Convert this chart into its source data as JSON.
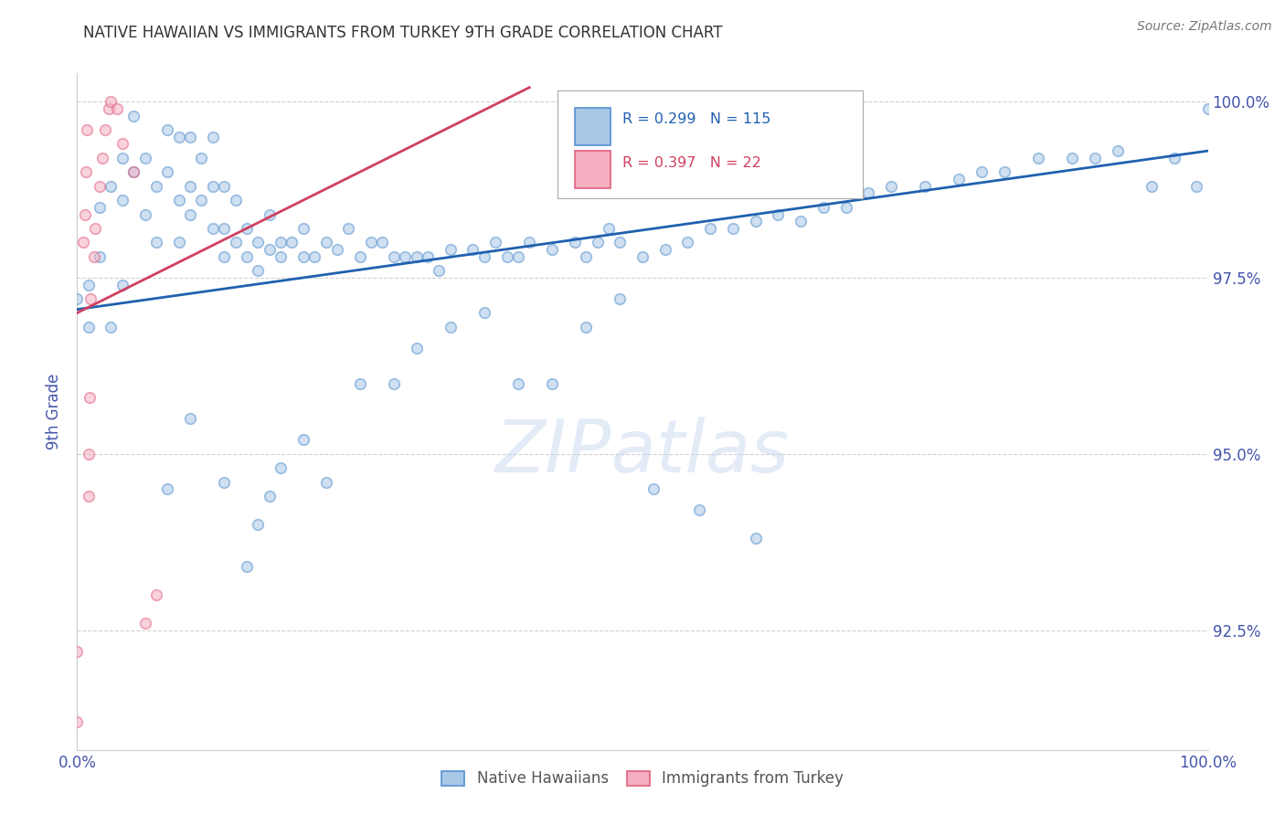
{
  "title": "NATIVE HAWAIIAN VS IMMIGRANTS FROM TURKEY 9TH GRADE CORRELATION CHART",
  "source": "Source: ZipAtlas.com",
  "ylabel": "9th Grade",
  "xlim": [
    0.0,
    1.0
  ],
  "ylim": [
    0.908,
    1.004
  ],
  "yticks": [
    0.925,
    0.95,
    0.975,
    1.0
  ],
  "ytick_labels": [
    "92.5%",
    "95.0%",
    "97.5%",
    "100.0%"
  ],
  "xticks": [
    0.0,
    0.2,
    0.4,
    0.6,
    0.8,
    1.0
  ],
  "xtick_labels": [
    "0.0%",
    "",
    "",
    "",
    "",
    "100.0%"
  ],
  "blue_scatter_x": [
    0.0,
    0.01,
    0.01,
    0.02,
    0.02,
    0.03,
    0.03,
    0.04,
    0.04,
    0.04,
    0.05,
    0.05,
    0.06,
    0.06,
    0.07,
    0.07,
    0.08,
    0.08,
    0.09,
    0.09,
    0.09,
    0.1,
    0.1,
    0.1,
    0.11,
    0.11,
    0.12,
    0.12,
    0.12,
    0.13,
    0.13,
    0.13,
    0.14,
    0.14,
    0.15,
    0.15,
    0.16,
    0.16,
    0.17,
    0.17,
    0.18,
    0.18,
    0.19,
    0.2,
    0.2,
    0.21,
    0.22,
    0.23,
    0.24,
    0.25,
    0.26,
    0.27,
    0.28,
    0.29,
    0.3,
    0.31,
    0.32,
    0.33,
    0.35,
    0.36,
    0.37,
    0.38,
    0.39,
    0.4,
    0.42,
    0.44,
    0.45,
    0.46,
    0.47,
    0.48,
    0.5,
    0.52,
    0.54,
    0.56,
    0.58,
    0.6,
    0.62,
    0.64,
    0.66,
    0.68,
    0.7,
    0.72,
    0.75,
    0.78,
    0.8,
    0.82,
    0.85,
    0.88,
    0.9,
    0.92,
    0.95,
    0.97,
    0.99,
    1.0,
    0.08,
    0.1,
    0.13,
    0.15,
    0.16,
    0.17,
    0.18,
    0.2,
    0.22,
    0.25,
    0.28,
    0.3,
    0.33,
    0.36,
    0.39,
    0.42,
    0.45,
    0.48,
    0.51,
    0.55,
    0.6
  ],
  "blue_scatter_y": [
    0.972,
    0.974,
    0.968,
    0.985,
    0.978,
    0.988,
    0.968,
    0.992,
    0.986,
    0.974,
    0.998,
    0.99,
    0.992,
    0.984,
    0.988,
    0.98,
    0.996,
    0.99,
    0.995,
    0.986,
    0.98,
    0.995,
    0.988,
    0.984,
    0.992,
    0.986,
    0.995,
    0.988,
    0.982,
    0.988,
    0.982,
    0.978,
    0.986,
    0.98,
    0.982,
    0.978,
    0.98,
    0.976,
    0.984,
    0.979,
    0.98,
    0.978,
    0.98,
    0.982,
    0.978,
    0.978,
    0.98,
    0.979,
    0.982,
    0.978,
    0.98,
    0.98,
    0.978,
    0.978,
    0.978,
    0.978,
    0.976,
    0.979,
    0.979,
    0.978,
    0.98,
    0.978,
    0.978,
    0.98,
    0.979,
    0.98,
    0.978,
    0.98,
    0.982,
    0.98,
    0.978,
    0.979,
    0.98,
    0.982,
    0.982,
    0.983,
    0.984,
    0.983,
    0.985,
    0.985,
    0.987,
    0.988,
    0.988,
    0.989,
    0.99,
    0.99,
    0.992,
    0.992,
    0.992,
    0.993,
    0.988,
    0.992,
    0.988,
    0.999,
    0.945,
    0.955,
    0.946,
    0.934,
    0.94,
    0.944,
    0.948,
    0.952,
    0.946,
    0.96,
    0.96,
    0.965,
    0.968,
    0.97,
    0.96,
    0.96,
    0.968,
    0.972,
    0.945,
    0.942,
    0.938
  ],
  "pink_scatter_x": [
    0.0,
    0.0,
    0.005,
    0.007,
    0.008,
    0.009,
    0.01,
    0.01,
    0.011,
    0.012,
    0.015,
    0.016,
    0.02,
    0.022,
    0.025,
    0.028,
    0.03,
    0.035,
    0.04,
    0.05,
    0.06,
    0.07
  ],
  "pink_scatter_y": [
    0.922,
    0.912,
    0.98,
    0.984,
    0.99,
    0.996,
    0.944,
    0.95,
    0.958,
    0.972,
    0.978,
    0.982,
    0.988,
    0.992,
    0.996,
    0.999,
    1.0,
    0.999,
    0.994,
    0.99,
    0.926,
    0.93
  ],
  "blue_line_x": [
    0.0,
    1.0
  ],
  "blue_line_y_start": 0.9705,
  "blue_line_y_end": 0.993,
  "pink_line_x": [
    0.0,
    0.4
  ],
  "pink_line_y_start": 0.97,
  "pink_line_y_end": 1.002,
  "R_blue": "0.299",
  "N_blue": "115",
  "R_pink": "0.397",
  "N_pink": "22",
  "blue_color": "#A8C8E8",
  "pink_color": "#F4B0C0",
  "blue_edge_color": "#5590CC",
  "pink_edge_color": "#E06080",
  "blue_line_color": "#2060B0",
  "pink_line_color": "#D04060",
  "axis_color": "#4455AA",
  "grid_color": "#CCCCCC",
  "legend_blue_label": "Native Hawaiians",
  "legend_pink_label": "Immigrants from Turkey",
  "watermark": "ZIPatlas",
  "scatter_size": 70,
  "scatter_alpha": 0.55,
  "scatter_linewidth": 1.2,
  "title_fontsize": 12,
  "source_text": "Source: ZipAtlas.com"
}
